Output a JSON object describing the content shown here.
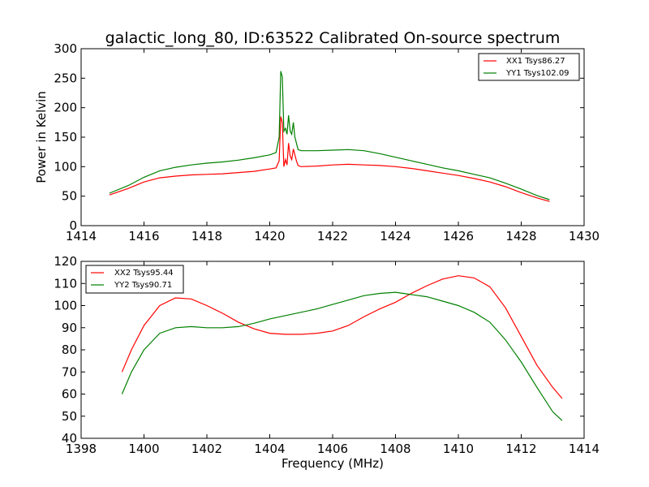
{
  "chart_data": [
    {
      "type": "line",
      "title": "galactic_long_80, ID:63522 Calibrated On-source spectrum",
      "xlabel": "",
      "ylabel": "Power in Kelvin",
      "xlim": [
        1414,
        1430
      ],
      "ylim": [
        0,
        300
      ],
      "xticks": [
        "1414",
        "1416",
        "1418",
        "1420",
        "1422",
        "1424",
        "1426",
        "1428",
        "1430"
      ],
      "yticks": [
        "0",
        "50",
        "100",
        "150",
        "200",
        "250",
        "300"
      ],
      "legend_position": "upper-right",
      "grid": false,
      "series": [
        {
          "name": "XX1 Tsys86.27",
          "color": "#ff0000",
          "x": [
            1414.9,
            1415.5,
            1416.0,
            1416.5,
            1417.0,
            1417.5,
            1418.0,
            1418.5,
            1419.0,
            1419.5,
            1420.0,
            1420.2,
            1420.3,
            1420.35,
            1420.4,
            1420.45,
            1420.5,
            1420.55,
            1420.6,
            1420.65,
            1420.7,
            1420.75,
            1420.8,
            1420.85,
            1420.9,
            1421.0,
            1421.5,
            1422.0,
            1422.5,
            1423.0,
            1423.5,
            1424.0,
            1424.5,
            1425.0,
            1425.5,
            1426.0,
            1426.5,
            1427.0,
            1427.5,
            1428.0,
            1428.5,
            1428.9
          ],
          "values": [
            52,
            63,
            74,
            81,
            84,
            86,
            87,
            88,
            90,
            92,
            96,
            98,
            110,
            185,
            175,
            100,
            112,
            103,
            140,
            118,
            112,
            130,
            120,
            110,
            102,
            100,
            101,
            103,
            104,
            103,
            102,
            100,
            97,
            93,
            89,
            85,
            80,
            74,
            66,
            56,
            47,
            41
          ]
        },
        {
          "name": "YY1 Tsys102.09",
          "color": "#008000",
          "x": [
            1414.9,
            1415.5,
            1416.0,
            1416.5,
            1417.0,
            1417.5,
            1418.0,
            1418.5,
            1419.0,
            1419.5,
            1420.0,
            1420.2,
            1420.3,
            1420.35,
            1420.4,
            1420.45,
            1420.5,
            1420.55,
            1420.6,
            1420.65,
            1420.7,
            1420.75,
            1420.8,
            1420.85,
            1420.9,
            1421.0,
            1421.5,
            1422.0,
            1422.5,
            1423.0,
            1423.5,
            1424.0,
            1424.5,
            1425.0,
            1425.5,
            1426.0,
            1426.5,
            1427.0,
            1427.5,
            1428.0,
            1428.5,
            1428.9
          ],
          "values": [
            55,
            68,
            82,
            93,
            99,
            103,
            106,
            108,
            111,
            115,
            120,
            124,
            150,
            262,
            252,
            160,
            165,
            155,
            187,
            160,
            155,
            175,
            150,
            140,
            129,
            127,
            127,
            128,
            129,
            127,
            122,
            116,
            110,
            104,
            98,
            93,
            87,
            81,
            72,
            62,
            51,
            44
          ]
        }
      ]
    },
    {
      "type": "line",
      "title": "",
      "xlabel": "Frequency (MHz)",
      "ylabel": "",
      "xlim": [
        1398,
        1414
      ],
      "ylim": [
        40,
        120
      ],
      "xticks": [
        "1398",
        "1400",
        "1402",
        "1404",
        "1406",
        "1408",
        "1410",
        "1412",
        "1414"
      ],
      "yticks": [
        "40",
        "50",
        "60",
        "70",
        "80",
        "90",
        "100",
        "110",
        "120"
      ],
      "legend_position": "upper-left",
      "grid": false,
      "series": [
        {
          "name": "XX2 Tsys95.44",
          "color": "#ff0000",
          "x": [
            1399.3,
            1399.6,
            1400.0,
            1400.5,
            1401.0,
            1401.5,
            1402.0,
            1402.5,
            1403.0,
            1403.5,
            1404.0,
            1404.5,
            1405.0,
            1405.5,
            1406.0,
            1406.5,
            1407.0,
            1407.5,
            1408.0,
            1408.5,
            1409.0,
            1409.5,
            1410.0,
            1410.5,
            1411.0,
            1411.5,
            1412.0,
            1412.5,
            1413.0,
            1413.3
          ],
          "values": [
            70,
            80,
            91,
            100,
            103.5,
            103,
            100,
            96.5,
            92.5,
            89.5,
            87.5,
            87,
            87,
            87.5,
            88.5,
            91,
            95,
            98.5,
            101.5,
            105.5,
            109,
            112,
            113.5,
            112.5,
            108.5,
            99,
            86,
            73,
            63,
            58
          ]
        },
        {
          "name": "YY2 Tsys90.71",
          "color": "#008000",
          "x": [
            1399.3,
            1399.6,
            1400.0,
            1400.5,
            1401.0,
            1401.5,
            1402.0,
            1402.5,
            1403.0,
            1403.5,
            1404.0,
            1404.5,
            1405.0,
            1405.5,
            1406.0,
            1406.5,
            1407.0,
            1407.5,
            1408.0,
            1408.5,
            1409.0,
            1409.5,
            1410.0,
            1410.5,
            1411.0,
            1411.5,
            1412.0,
            1412.5,
            1413.0,
            1413.3
          ],
          "values": [
            60,
            70,
            80,
            87.5,
            90,
            90.5,
            90,
            90,
            90.5,
            92,
            94,
            95.5,
            97,
            98.5,
            100.5,
            102.5,
            104.5,
            105.5,
            106,
            105,
            104,
            102,
            100,
            97,
            92.5,
            84.5,
            74.5,
            63,
            52,
            48
          ]
        }
      ]
    }
  ]
}
